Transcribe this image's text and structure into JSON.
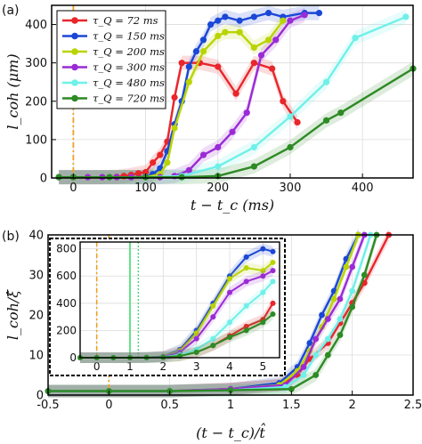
{
  "chart_data": [
    {
      "panel_label": "(a)",
      "type": "line",
      "xlabel": "t − t_c (ms)",
      "ylabel": "l_coh (μm)",
      "xlim": [
        -30,
        470
      ],
      "ylim": [
        0,
        450
      ],
      "xticks": [
        0,
        100,
        200,
        300,
        400
      ],
      "yticks": [
        0,
        100,
        200,
        300,
        400
      ],
      "vline": 0,
      "legend_position": "top-left",
      "series": [
        {
          "name": "τ_Q = 72 ms",
          "color": "#e8262b",
          "x": [
            -20,
            0,
            20,
            40,
            60,
            70,
            80,
            90,
            100,
            110,
            120,
            130,
            140,
            150,
            175,
            200,
            225,
            250,
            275,
            290,
            310
          ],
          "y": [
            2,
            2,
            2,
            2,
            3,
            5,
            8,
            12,
            15,
            40,
            60,
            95,
            210,
            300,
            300,
            290,
            220,
            300,
            285,
            200,
            145
          ]
        },
        {
          "name": "τ_Q = 150 ms",
          "color": "#1a47d6",
          "x": [
            -20,
            0,
            20,
            40,
            60,
            80,
            100,
            110,
            120,
            130,
            140,
            150,
            160,
            170,
            180,
            190,
            200,
            210,
            230,
            250,
            270,
            290,
            320,
            340
          ],
          "y": [
            2,
            2,
            2,
            2,
            2,
            2,
            3,
            10,
            25,
            70,
            140,
            200,
            290,
            330,
            360,
            400,
            410,
            420,
            410,
            420,
            430,
            420,
            430,
            430
          ]
        },
        {
          "name": "τ_Q = 200 ms",
          "color": "#b9d400",
          "x": [
            -20,
            0,
            20,
            40,
            60,
            80,
            100,
            120,
            130,
            140,
            160,
            180,
            200,
            210,
            230,
            250,
            270,
            290
          ],
          "y": [
            2,
            2,
            2,
            2,
            2,
            2,
            2,
            10,
            40,
            130,
            250,
            330,
            370,
            380,
            380,
            340,
            360,
            410
          ]
        },
        {
          "name": "τ_Q = 300 ms",
          "color": "#9a2bd6",
          "x": [
            -20,
            0,
            20,
            40,
            60,
            80,
            100,
            120,
            140,
            160,
            180,
            200,
            220,
            240,
            260,
            280,
            300,
            320
          ],
          "y": [
            2,
            2,
            2,
            2,
            2,
            2,
            2,
            2,
            5,
            20,
            60,
            80,
            120,
            170,
            320,
            360,
            410,
            425
          ]
        },
        {
          "name": "τ_Q = 480 ms",
          "color": "#6ff0e9",
          "x": [
            -20,
            0,
            50,
            100,
            150,
            200,
            250,
            300,
            350,
            390,
            460
          ],
          "y": [
            2,
            2,
            2,
            2,
            5,
            30,
            80,
            160,
            250,
            365,
            420
          ]
        },
        {
          "name": "τ_Q = 720 ms",
          "color": "#2d8a24",
          "x": [
            -20,
            0,
            50,
            100,
            150,
            200,
            250,
            300,
            350,
            370,
            470
          ],
          "y": [
            2,
            2,
            2,
            2,
            2,
            5,
            30,
            80,
            150,
            170,
            285
          ]
        }
      ]
    },
    {
      "panel_label": "(b)",
      "type": "line",
      "xlabel": "(t − t_c)/t̂",
      "ylabel": "l_coh/ξ̂",
      "xlim": [
        -0.5,
        2.5
      ],
      "ylim": [
        0,
        40
      ],
      "xticks": [
        -0.5,
        0,
        0.5,
        1,
        1.5,
        2,
        2.5
      ],
      "xticklabels": [
        "-0.5",
        "0",
        "0.5",
        "1",
        "1.5",
        "2",
        "2.5"
      ],
      "yticks": [
        0,
        10,
        20,
        30,
        40
      ],
      "vline": 0,
      "series": [
        {
          "color": "#e8262b",
          "x": [
            -0.5,
            0,
            0.5,
            1,
            1.4,
            1.55,
            1.65,
            1.8,
            1.9,
            2.0,
            2.1,
            2.3
          ],
          "y": [
            1,
            1,
            1,
            1.5,
            2.5,
            5,
            9,
            13,
            18,
            23,
            28,
            40
          ]
        },
        {
          "color": "#1a47d6",
          "x": [
            -0.5,
            0,
            0.5,
            1,
            1.4,
            1.55,
            1.65,
            1.75,
            1.85,
            1.95,
            2.05
          ],
          "y": [
            1,
            1,
            1,
            1.5,
            3,
            7,
            13,
            20,
            26,
            34,
            40
          ]
        },
        {
          "color": "#b9d400",
          "x": [
            -0.5,
            0,
            0.5,
            1,
            1.4,
            1.55,
            1.65,
            1.75,
            1.85,
            1.95,
            2.05
          ],
          "y": [
            1,
            1,
            1,
            1.5,
            2.5,
            6,
            11,
            17,
            24,
            32,
            40
          ]
        },
        {
          "color": "#9a2bd6",
          "x": [
            -0.5,
            0,
            0.5,
            1,
            1.45,
            1.6,
            1.7,
            1.8,
            1.9,
            2.0,
            2.1
          ],
          "y": [
            1,
            1,
            1,
            1.5,
            2.5,
            7,
            14,
            19,
            24,
            32,
            40
          ]
        },
        {
          "color": "#6ff0e9",
          "x": [
            -0.5,
            0,
            0.5,
            1,
            1.45,
            1.6,
            1.7,
            1.8,
            1.9,
            2.0,
            2.15
          ],
          "y": [
            1,
            1,
            1,
            1.2,
            2,
            5,
            10,
            14,
            19,
            26,
            40
          ]
        },
        {
          "color": "#2d8a24",
          "x": [
            -0.5,
            0,
            0.5,
            1,
            1.5,
            1.7,
            1.8,
            1.9,
            2.0,
            2.1,
            2.2
          ],
          "y": [
            1,
            1,
            1,
            1.2,
            1.5,
            5,
            10,
            15,
            22,
            30,
            40
          ]
        }
      ],
      "inset": {
        "xlim": [
          -0.5,
          5.5
        ],
        "ylim": [
          0,
          850
        ],
        "xticks": [
          0,
          1,
          2,
          3,
          4,
          5
        ],
        "yticks": [
          0,
          200,
          400,
          600,
          800
        ],
        "vline": 0,
        "vline_green_solid": 1,
        "vline_green_dotted": 1.25,
        "series": [
          {
            "color": "#e8262b",
            "x": [
              -0.5,
              0,
              0.5,
              1,
              1.5,
              2,
              2.5,
              3,
              3.5,
              4,
              4.5,
              5,
              5.3
            ],
            "y": [
              0,
              0,
              0,
              0,
              2,
              5,
              15,
              40,
              90,
              160,
              230,
              280,
              400
            ]
          },
          {
            "color": "#1a47d6",
            "x": [
              -0.5,
              0,
              0.5,
              1,
              1.5,
              2,
              2.5,
              3,
              3.5,
              4,
              4.5,
              5,
              5.3
            ],
            "y": [
              0,
              0,
              0,
              0,
              2,
              10,
              60,
              200,
              400,
              600,
              740,
              800,
              780
            ]
          },
          {
            "color": "#b9d400",
            "x": [
              -0.5,
              0,
              0.5,
              1,
              1.5,
              2,
              2.5,
              3,
              3.5,
              4,
              4.5,
              5,
              5.3
            ],
            "y": [
              0,
              0,
              0,
              0,
              2,
              10,
              50,
              180,
              380,
              580,
              660,
              640,
              700
            ]
          },
          {
            "color": "#9a2bd6",
            "x": [
              -0.5,
              0,
              0.5,
              1,
              1.5,
              2,
              2.5,
              3,
              3.5,
              4,
              4.5,
              5,
              5.3
            ],
            "y": [
              0,
              0,
              0,
              0,
              2,
              8,
              40,
              140,
              300,
              480,
              560,
              600,
              640
            ]
          },
          {
            "color": "#6ff0e9",
            "x": [
              -0.5,
              0,
              0.5,
              1,
              1.5,
              2,
              2.5,
              3,
              3.5,
              4,
              4.5,
              5,
              5.3
            ],
            "y": [
              0,
              0,
              0,
              0,
              1,
              4,
              20,
              60,
              140,
              260,
              380,
              480,
              560
            ]
          },
          {
            "color": "#2d8a24",
            "x": [
              -0.5,
              0,
              0.5,
              1,
              1.5,
              2,
              2.5,
              3,
              3.5,
              4,
              4.5,
              5,
              5.3
            ],
            "y": [
              0,
              0,
              0,
              0,
              1,
              3,
              12,
              40,
              90,
              150,
              200,
              260,
              320
            ]
          }
        ]
      }
    }
  ]
}
